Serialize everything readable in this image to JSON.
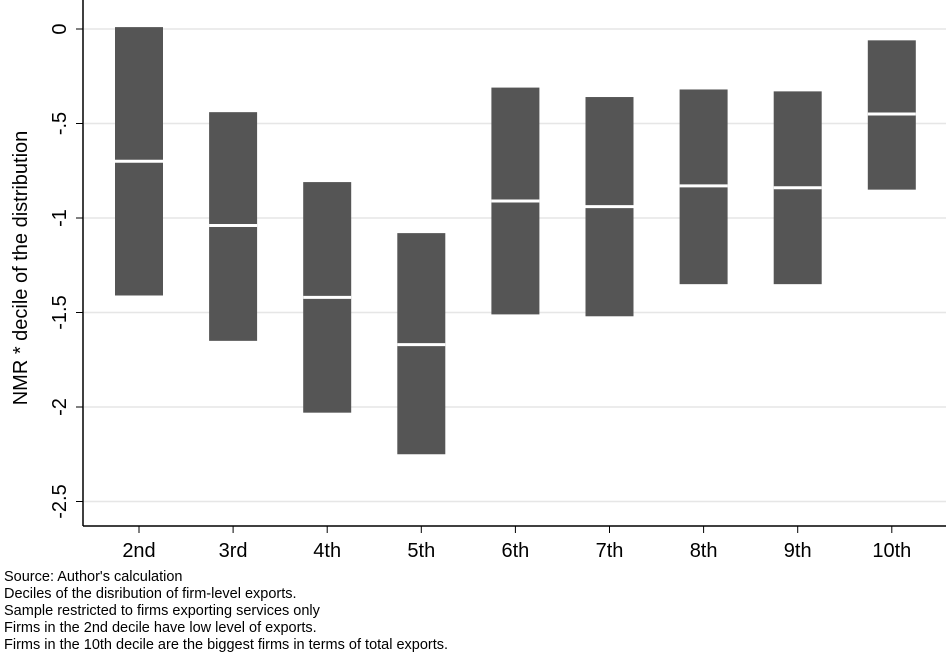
{
  "chart_data": {
    "type": "bar",
    "subtype": "range",
    "categories": [
      "2nd",
      "3rd",
      "4th",
      "5th",
      "6th",
      "7th",
      "8th",
      "9th",
      "10th"
    ],
    "series": [
      {
        "low": [
          -1.41,
          -1.65,
          -2.03,
          -2.25,
          -1.51,
          -1.52,
          -1.35,
          -1.35,
          -0.85
        ],
        "mid": [
          -0.7,
          -1.04,
          -1.42,
          -1.67,
          -0.91,
          -0.94,
          -0.83,
          -0.84,
          -0.45
        ],
        "high": [
          0.01,
          -0.44,
          -0.81,
          -1.08,
          -0.31,
          -0.36,
          -0.32,
          -0.33,
          -0.06
        ]
      }
    ],
    "ylabel": "NMR * decile of the distribution",
    "xlabel": "",
    "ylim": [
      -2.65,
      0.1
    ],
    "yticks": [
      0,
      -0.5,
      -1,
      -1.5,
      -2,
      -2.5
    ],
    "ytick_labels": [
      "0",
      "-.5",
      "-1",
      "-1.5",
      "-2",
      "-2.5"
    ],
    "grid": "horizontal",
    "colors": {
      "bar": "#555555",
      "mid_line": "#ffffff",
      "grid": "#e6e6e6",
      "axis": "#000000"
    }
  },
  "notes": [
    "Source: Author's calculation",
    "Deciles of the disribution of firm-level exports.",
    "Sample restricted to firms exporting services only",
    "Firms in the 2nd decile have low level of exports.",
    "Firms in the 10th decile are the biggest firms in terms of total exports."
  ]
}
